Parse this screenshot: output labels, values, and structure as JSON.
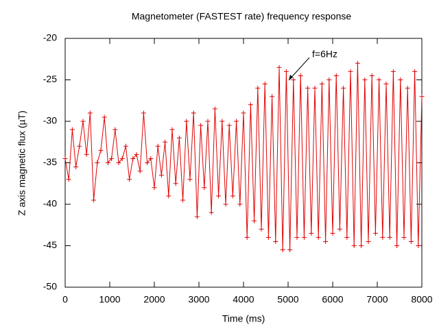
{
  "chart_data": {
    "type": "line",
    "title": "Magnetometer (FASTEST rate) frequency response",
    "x_label": "Time (ms)",
    "y_label": "Z axis magnetic flux (µT)",
    "annotation": "f=6Hz",
    "color": "#e00000",
    "marker": "plus",
    "xlim": [
      0,
      8000
    ],
    "xticks": [
      0,
      1000,
      2000,
      3000,
      4000,
      5000,
      6000,
      7000,
      8000
    ],
    "ylim": [
      -50,
      -20
    ],
    "yticks": [
      -20,
      -25,
      -30,
      -35,
      -40,
      -45,
      -50
    ],
    "x": [
      0,
      80,
      160,
      240,
      320,
      400,
      480,
      560,
      640,
      720,
      800,
      880,
      960,
      1040,
      1120,
      1200,
      1280,
      1360,
      1440,
      1520,
      1600,
      1680,
      1760,
      1840,
      1920,
      2000,
      2080,
      2160,
      2240,
      2320,
      2400,
      2480,
      2560,
      2640,
      2720,
      2800,
      2880,
      2960,
      3040,
      3120,
      3200,
      3280,
      3360,
      3440,
      3520,
      3600,
      3680,
      3760,
      3840,
      3920,
      4000,
      4080,
      4160,
      4240,
      4320,
      4400,
      4480,
      4560,
      4640,
      4720,
      4800,
      4880,
      4960,
      5040,
      5120,
      5200,
      5280,
      5360,
      5440,
      5520,
      5600,
      5680,
      5760,
      5840,
      5920,
      6000,
      6080,
      6160,
      6240,
      6320,
      6400,
      6480,
      6560,
      6640,
      6720,
      6800,
      6880,
      6960,
      7040,
      7120,
      7200,
      7280,
      7360,
      7440,
      7520,
      7600,
      7680,
      7760,
      7840,
      7920,
      8000
    ],
    "values": [
      -34.5,
      -37,
      -31,
      -35.5,
      -33,
      -30,
      -34,
      -29,
      -39.5,
      -35,
      -33.5,
      -29.5,
      -35,
      -34.5,
      -31,
      -35,
      -34.5,
      -33,
      -37,
      -34.5,
      -34,
      -36,
      -29,
      -35,
      -34.5,
      -38,
      -33,
      -36.5,
      -32.5,
      -39,
      -31,
      -37.5,
      -32,
      -39.5,
      -30,
      -37,
      -29,
      -41.5,
      -30.5,
      -38,
      -30,
      -41,
      -28.5,
      -39,
      -30,
      -40,
      -30.5,
      -39,
      -30,
      -40,
      -29,
      -44,
      -28,
      -42,
      -26,
      -43,
      -25.5,
      -44,
      -27,
      -44.5,
      -23.5,
      -45.5,
      -24,
      -45.5,
      -25,
      -44,
      -24.5,
      -44,
      -26,
      -43.5,
      -26,
      -44,
      -25.5,
      -44.5,
      -25,
      -43.5,
      -24.5,
      -43,
      -26,
      -44,
      -24,
      -45,
      -23,
      -45,
      -25,
      -44.5,
      -24.5,
      -43.5,
      -25,
      -44,
      -25.5,
      -44,
      -24,
      -45,
      -25,
      -44,
      -26,
      -44.5,
      -24,
      -45,
      -27
    ]
  }
}
